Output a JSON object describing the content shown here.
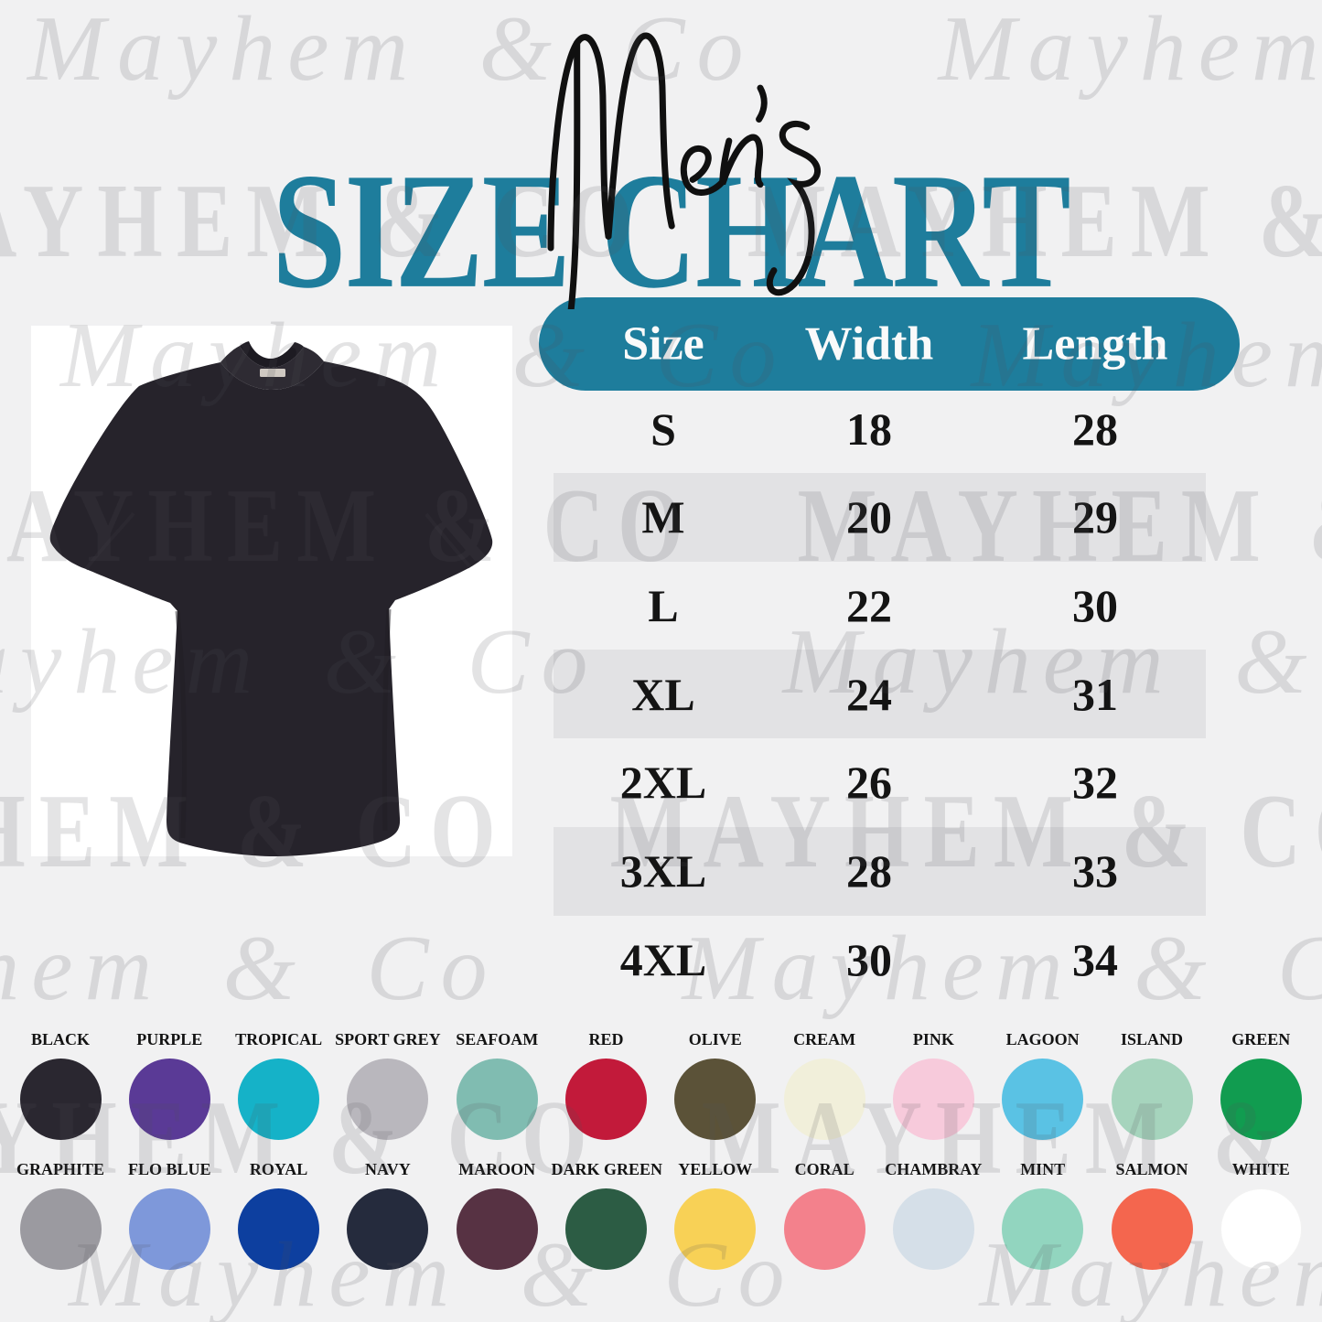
{
  "title": {
    "script": "Men's",
    "main": "SIZE CHART"
  },
  "watermark": {
    "script_text": "Mayhem & Co",
    "serif_text": "MAYHEM & CO"
  },
  "colors": {
    "accent_teal": "#1e7d9c",
    "background": "#f1f1f2",
    "table_text": "#141414",
    "header_text": "#fafafa",
    "shirt_black": "#26232b"
  },
  "product_image": {
    "description": "black crew-neck t-shirt on white background"
  },
  "size_table": {
    "headers": [
      "Size",
      "Width",
      "Length"
    ],
    "rows": [
      {
        "size": "S",
        "width": "18",
        "length": "28"
      },
      {
        "size": "M",
        "width": "20",
        "length": "29"
      },
      {
        "size": "L",
        "width": "22",
        "length": "30"
      },
      {
        "size": "XL",
        "width": "24",
        "length": "31"
      },
      {
        "size": "2XL",
        "width": "26",
        "length": "32"
      },
      {
        "size": "3XL",
        "width": "28",
        "length": "33"
      },
      {
        "size": "4XL",
        "width": "30",
        "length": "34"
      }
    ]
  },
  "chart_data": {
    "type": "table",
    "title": "Men's Size Chart",
    "columns": [
      "Size",
      "Width",
      "Length"
    ],
    "rows": [
      [
        "S",
        18,
        28
      ],
      [
        "M",
        20,
        29
      ],
      [
        "L",
        22,
        30
      ],
      [
        "XL",
        24,
        31
      ],
      [
        "2XL",
        26,
        32
      ],
      [
        "3XL",
        28,
        33
      ],
      [
        "4XL",
        30,
        34
      ]
    ]
  },
  "swatches": {
    "row1": [
      {
        "label": "BLACK",
        "color": "#2a2730"
      },
      {
        "label": "PURPLE",
        "color": "#5a3a96"
      },
      {
        "label": "TROPICAL",
        "color": "#15b2c8"
      },
      {
        "label": "SPORT GREY",
        "color": "#b9b7bd"
      },
      {
        "label": "SEAFOAM",
        "color": "#80bcb1"
      },
      {
        "label": "RED",
        "color": "#c21a3a"
      },
      {
        "label": "OLIVE",
        "color": "#5b5238"
      },
      {
        "label": "CREAM",
        "color": "#f1efda"
      },
      {
        "label": "PINK",
        "color": "#f7cadb"
      },
      {
        "label": "LAGOON",
        "color": "#5ac2e4"
      },
      {
        "label": "ISLAND",
        "color": "#a6d4bd"
      },
      {
        "label": "GREEN",
        "color": "#119c50"
      }
    ],
    "row2": [
      {
        "label": "GRAPHITE",
        "color": "#9b9aa0"
      },
      {
        "label": "FLO BLUE",
        "color": "#7e98da"
      },
      {
        "label": "ROYAL",
        "color": "#0d3f9f"
      },
      {
        "label": "NAVY",
        "color": "#252b3d"
      },
      {
        "label": "MAROON",
        "color": "#573243"
      },
      {
        "label": "DARK GREEN",
        "color": "#2c5c44"
      },
      {
        "label": "YELLOW",
        "color": "#f8d156"
      },
      {
        "label": "CORAL",
        "color": "#f3818c"
      },
      {
        "label": "CHAMBRAY",
        "color": "#d5dfe8"
      },
      {
        "label": "MINT",
        "color": "#92d5bf"
      },
      {
        "label": "SALMON",
        "color": "#f4664e"
      },
      {
        "label": "WHITE",
        "color": "#ffffff"
      }
    ]
  }
}
